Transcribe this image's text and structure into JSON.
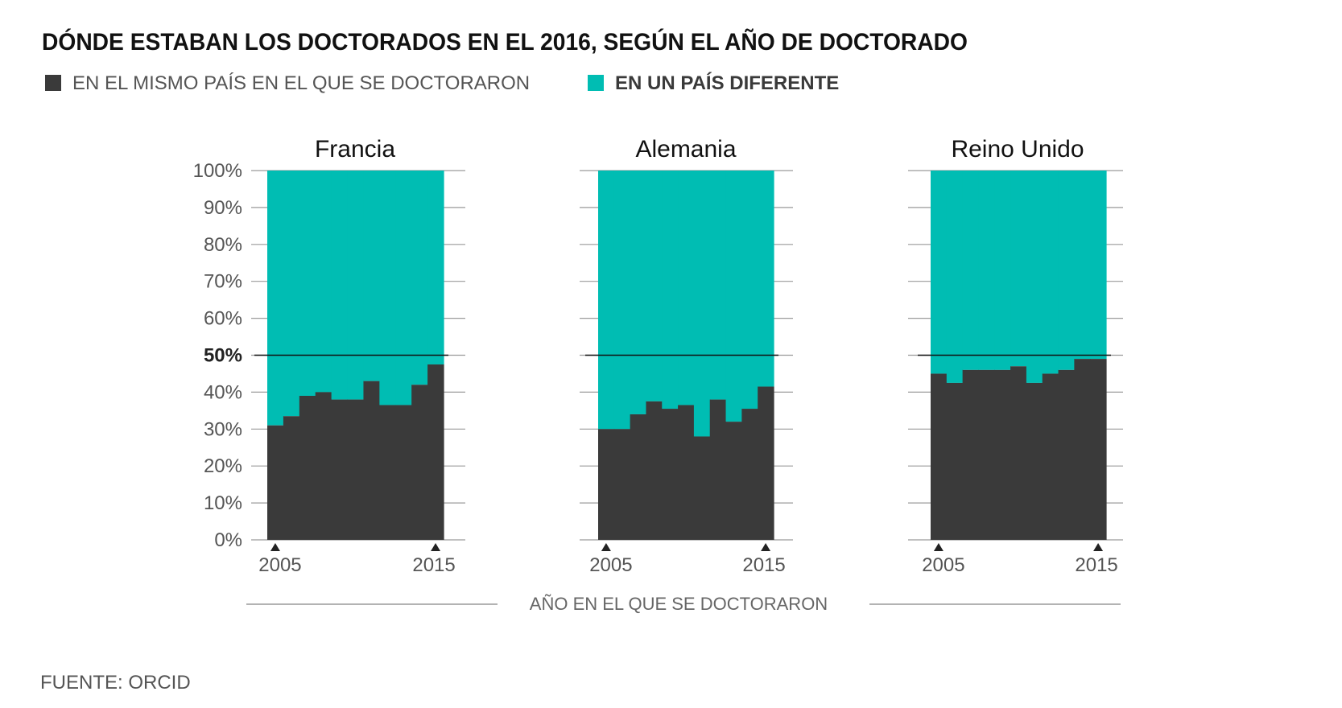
{
  "title": "DÓNDE ESTABAN LOS DOCTORADOS EN EL 2016, SEGÚN EL AÑO DE DOCTORADO",
  "legend": [
    {
      "label": "EN EL MISMO PAÍS EN EL QUE SE DOCTORARON",
      "color": "#3a3a3a"
    },
    {
      "label": "EN UN PAÍS DIFERENTE",
      "color": "#00bdb3"
    }
  ],
  "source": "FUENTE: ORCID",
  "colors": {
    "same": "#3a3a3a",
    "different": "#00bdb3",
    "grid": "#9a9a9a",
    "text": "#404040"
  },
  "chart_data": {
    "type": "area",
    "stacked_percent": true,
    "xlabel": "AÑO EN EL QUE SE DOCTORARON",
    "ylim": [
      0,
      100
    ],
    "yticks": [
      "0%",
      "10%",
      "20%",
      "30%",
      "40%",
      "50%",
      "60%",
      "70%",
      "80%",
      "90%",
      "100%"
    ],
    "reference_line": 50,
    "x_tick_labels": [
      "2005",
      "2015"
    ],
    "x": [
      2005,
      2006,
      2007,
      2008,
      2009,
      2010,
      2011,
      2012,
      2013,
      2014,
      2015
    ],
    "panels": [
      {
        "name": "Francia",
        "series": [
          {
            "name": "EN EL MISMO PAÍS EN EL QUE SE DOCTORARON",
            "values": [
              31,
              33.5,
              39,
              40,
              38,
              38,
              43,
              36.5,
              36.5,
              42,
              47.5
            ]
          },
          {
            "name": "EN UN PAÍS DIFERENTE",
            "values": [
              69,
              66.5,
              61,
              60,
              62,
              62,
              57,
              63.5,
              63.5,
              58,
              52.5
            ]
          }
        ]
      },
      {
        "name": "Alemania",
        "series": [
          {
            "name": "EN EL MISMO PAÍS EN EL QUE SE DOCTORARON",
            "values": [
              30,
              30,
              34,
              37.5,
              35.5,
              36.5,
              28,
              38,
              32,
              35.5,
              41.5
            ]
          },
          {
            "name": "EN UN PAÍS DIFERENTE",
            "values": [
              70,
              70,
              66,
              62.5,
              64.5,
              63.5,
              72,
              62,
              68,
              64.5,
              58.5
            ]
          }
        ]
      },
      {
        "name": "Reino Unido",
        "series": [
          {
            "name": "EN EL MISMO PAÍS EN EL QUE SE DOCTORARON",
            "values": [
              45,
              42.5,
              46,
              46,
              46,
              47,
              42.5,
              45,
              46,
              49,
              49
            ]
          },
          {
            "name": "EN UN PAÍS DIFERENTE",
            "values": [
              55,
              57.5,
              54,
              54,
              54,
              53,
              57.5,
              55,
              54,
              51,
              51
            ]
          }
        ]
      }
    ]
  }
}
